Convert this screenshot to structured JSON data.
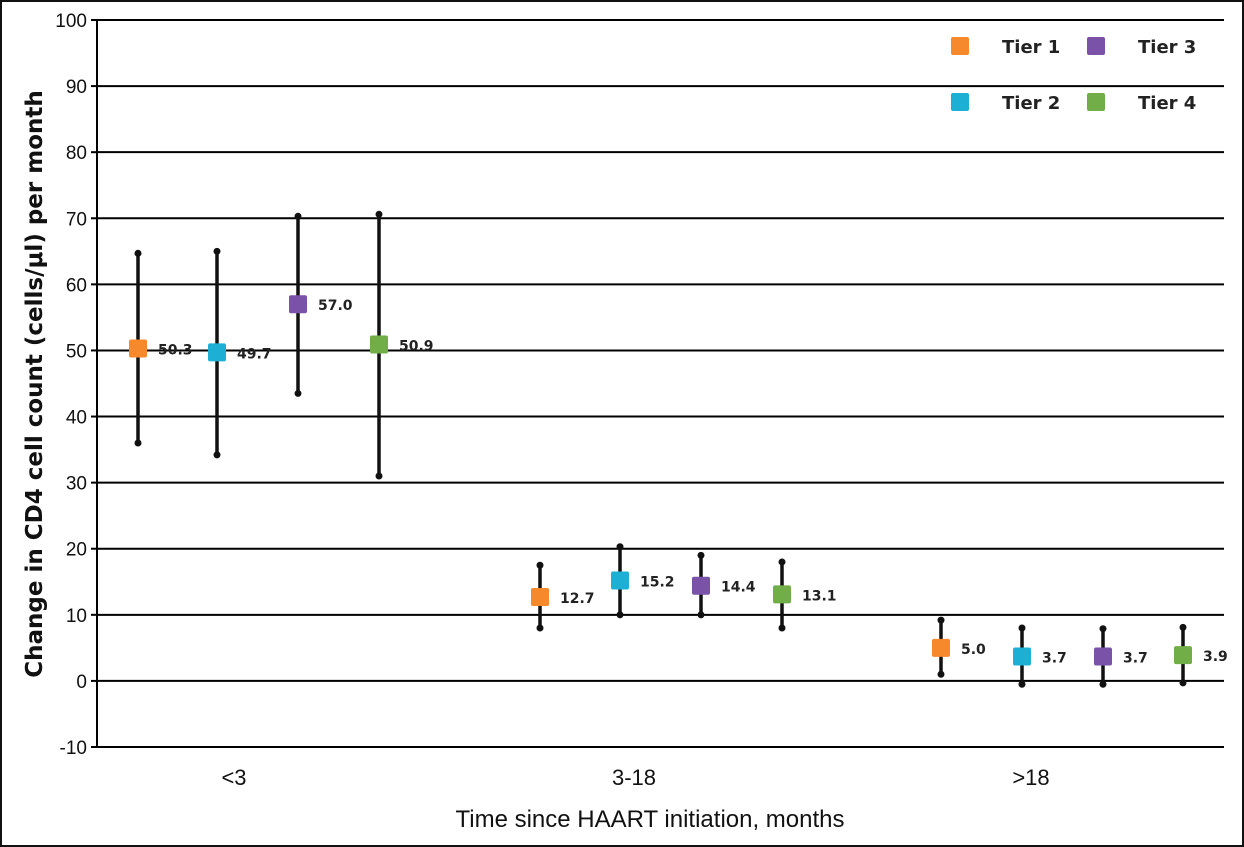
{
  "chart_data": {
    "type": "scatter",
    "title": "",
    "xlabel": "Time since HAART initiation, months",
    "ylabel": "Change in CD4 cell count (cells/μl) per month",
    "ylim": [
      -10,
      100
    ],
    "yticks": [
      -10,
      0,
      10,
      20,
      30,
      40,
      50,
      60,
      70,
      80,
      90,
      100
    ],
    "categories": [
      "<3",
      "3-18",
      ">18"
    ],
    "grid": true,
    "legend_position": "top-right",
    "series": [
      {
        "name": "Tier 1",
        "color": "#F5892B",
        "values": [
          50.3,
          12.7,
          5.0
        ],
        "labels": [
          "50.3",
          "12.7",
          "5.0"
        ],
        "error_low": [
          36,
          8,
          1
        ],
        "error_high": [
          64.7,
          17.5,
          9.2
        ]
      },
      {
        "name": "Tier 2",
        "color": "#1DB0D4",
        "values": [
          49.7,
          15.2,
          3.7
        ],
        "labels": [
          "49.7",
          "15.2",
          "3.7"
        ],
        "error_low": [
          34.2,
          10,
          -0.5
        ],
        "error_high": [
          65,
          20.3,
          8
        ]
      },
      {
        "name": "Tier 3",
        "color": "#7A52A8",
        "values": [
          57.0,
          14.4,
          3.7
        ],
        "labels": [
          "57.0",
          "14.4",
          "3.7"
        ],
        "error_low": [
          43.5,
          10,
          -0.5
        ],
        "error_high": [
          70.3,
          19,
          7.9
        ]
      },
      {
        "name": "Tier 4",
        "color": "#72AE48",
        "values": [
          50.9,
          13.1,
          3.9
        ],
        "labels": [
          "50.9",
          "13.1",
          "3.9"
        ],
        "error_low": [
          31,
          8,
          -0.3
        ],
        "error_high": [
          70.6,
          18,
          8.1
        ]
      }
    ]
  }
}
